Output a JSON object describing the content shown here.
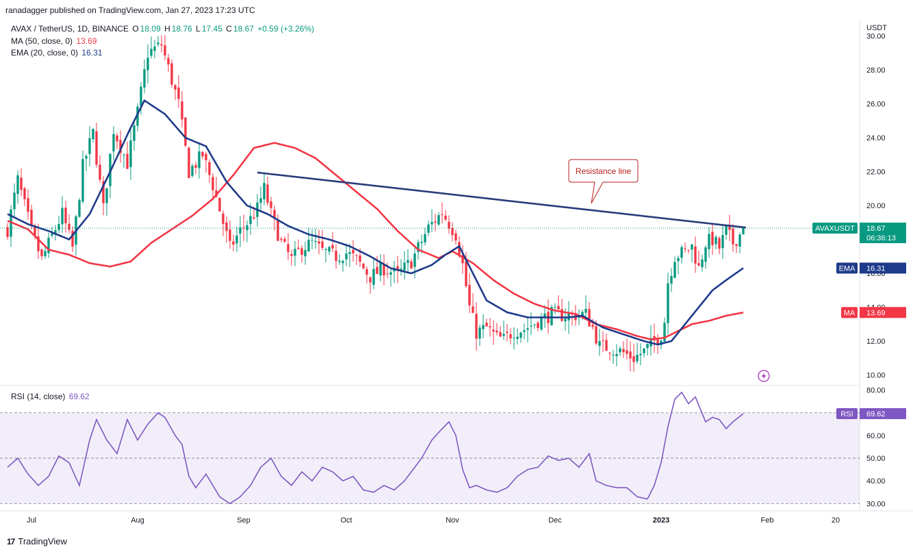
{
  "header": {
    "published": "ranadagger published on TradingView.com, Jan 27, 2023 17:23 UTC"
  },
  "legend": {
    "symbol": "AVAX / TetherUS, 1D, BINANCE",
    "open_label": "O",
    "open": "18.09",
    "high_label": "H",
    "high": "18.76",
    "low_label": "L",
    "low": "17.45",
    "close_label": "C",
    "close": "18.67",
    "change": "+0.59 (+3.26%)",
    "ma_label": "MA (50, close, 0)",
    "ma_value": "13.69",
    "ema_label": "EMA (20, close, 0)",
    "ema_value": "16.31",
    "rsi_label": "RSI (14, close)",
    "rsi_value": "69.62"
  },
  "colors": {
    "up": "#089981",
    "down": "#f23645",
    "ma": "#f23645",
    "ema": "#1e3a8a",
    "rsi": "#7e57c2",
    "trend": "#283b7a"
  },
  "footer": {
    "brand": "TradingView"
  },
  "chart_data": {
    "type": "candlestick",
    "title": "AVAX / TetherUS, 1D, BINANCE",
    "currency_label": "USDT",
    "price_axis_ticks": [
      "30.00",
      "28.00",
      "26.00",
      "24.00",
      "22.00",
      "20.00",
      "18.00",
      "16.00",
      "14.00",
      "12.00",
      "10.00"
    ],
    "price_axis_range": [
      9.5,
      31
    ],
    "rsi_axis_ticks": [
      "80.00",
      "70.00",
      "60.00",
      "50.00",
      "40.00",
      "30.00"
    ],
    "rsi_axis_range": [
      28,
      82
    ],
    "rsi_bands": [
      30,
      50,
      70
    ],
    "x_labels": [
      "Jul",
      "Aug",
      "Sep",
      "Oct",
      "Nov",
      "Dec",
      "2023",
      "Feb",
      "20"
    ],
    "x_label_days": [
      7,
      38,
      69,
      99,
      130,
      160,
      191,
      222,
      242
    ],
    "num_days": 215,
    "last_price": 18.67,
    "annotation": "Resistance line",
    "resistance_line": [
      {
        "day": 73,
        "price": 21.95
      },
      {
        "day": 215,
        "price": 18.7
      }
    ],
    "badges": [
      {
        "label": "AVAXUSDT",
        "value": "18.67",
        "sub": "06:36:13",
        "price": 18.67
      },
      {
        "label": "EMA",
        "value": "16.31",
        "price": 16.31
      },
      {
        "label": "MA",
        "value": "13.69",
        "price": 13.69
      },
      {
        "label": "RSI",
        "value": "69.62",
        "rsi": 69.62
      }
    ],
    "price_anchors": [
      [
        0,
        18.6
      ],
      [
        3,
        21.5
      ],
      [
        7,
        18.5
      ],
      [
        10,
        16.8
      ],
      [
        13,
        18.2
      ],
      [
        16,
        19.5
      ],
      [
        19,
        17.5
      ],
      [
        22,
        22.3
      ],
      [
        25,
        24.3
      ],
      [
        28,
        19.8
      ],
      [
        31,
        24.5
      ],
      [
        35,
        22.5
      ],
      [
        38,
        25.5
      ],
      [
        41,
        29.0
      ],
      [
        45,
        29.5
      ],
      [
        50,
        26.0
      ],
      [
        53,
        22.0
      ],
      [
        57,
        23.0
      ],
      [
        60,
        21.2
      ],
      [
        63,
        19.0
      ],
      [
        65,
        17.5
      ],
      [
        68,
        18.5
      ],
      [
        71,
        19.2
      ],
      [
        73,
        19.8
      ],
      [
        75,
        21.0
      ],
      [
        77,
        19.5
      ],
      [
        80,
        17.8
      ],
      [
        83,
        16.8
      ],
      [
        86,
        17.5
      ],
      [
        89,
        17.8
      ],
      [
        92,
        17.3
      ],
      [
        96,
        17.0
      ],
      [
        99,
        17.2
      ],
      [
        102,
        16.8
      ],
      [
        106,
        15.8
      ],
      [
        110,
        16.3
      ],
      [
        114,
        15.9
      ],
      [
        118,
        16.7
      ],
      [
        120,
        17.5
      ],
      [
        123,
        18.7
      ],
      [
        127,
        19.6
      ],
      [
        131,
        18.3
      ],
      [
        133,
        16.5
      ],
      [
        135,
        14.0
      ],
      [
        137,
        12.5
      ],
      [
        140,
        12.8
      ],
      [
        143,
        12.2
      ],
      [
        145,
        12.1
      ],
      [
        148,
        12.6
      ],
      [
        151,
        12.7
      ],
      [
        155,
        13.2
      ],
      [
        159,
        13.6
      ],
      [
        164,
        13.5
      ],
      [
        169,
        13.6
      ],
      [
        171,
        12.8
      ],
      [
        173,
        11.7
      ],
      [
        176,
        11.6
      ],
      [
        179,
        11.4
      ],
      [
        183,
        11.0
      ],
      [
        186,
        11.4
      ],
      [
        189,
        12.0
      ],
      [
        191,
        12.4
      ],
      [
        192,
        13.2
      ],
      [
        193,
        15.5
      ],
      [
        195,
        17.0
      ],
      [
        198,
        17.3
      ],
      [
        200,
        17.6
      ],
      [
        202,
        16.3
      ],
      [
        204,
        17.8
      ],
      [
        206,
        18.0
      ],
      [
        208,
        17.5
      ],
      [
        210,
        18.5
      ],
      [
        212,
        17.8
      ],
      [
        214,
        18.3
      ],
      [
        215,
        18.67
      ]
    ],
    "ma_anchors": [
      [
        0,
        19.1
      ],
      [
        6,
        18.6
      ],
      [
        12,
        17.4
      ],
      [
        18,
        17.1
      ],
      [
        24,
        16.6
      ],
      [
        30,
        16.4
      ],
      [
        36,
        16.7
      ],
      [
        42,
        17.8
      ],
      [
        48,
        18.6
      ],
      [
        54,
        19.4
      ],
      [
        60,
        20.4
      ],
      [
        66,
        21.8
      ],
      [
        72,
        23.4
      ],
      [
        78,
        23.7
      ],
      [
        84,
        23.4
      ],
      [
        90,
        22.8
      ],
      [
        96,
        21.8
      ],
      [
        102,
        20.8
      ],
      [
        108,
        19.8
      ],
      [
        114,
        18.5
      ],
      [
        120,
        17.4
      ],
      [
        126,
        16.9
      ],
      [
        130,
        17.3
      ],
      [
        136,
        16.6
      ],
      [
        142,
        15.6
      ],
      [
        148,
        14.8
      ],
      [
        154,
        14.2
      ],
      [
        160,
        13.8
      ],
      [
        166,
        13.6
      ],
      [
        172,
        13.0
      ],
      [
        178,
        12.7
      ],
      [
        184,
        12.3
      ],
      [
        188,
        12.1
      ],
      [
        192,
        12.2
      ],
      [
        196,
        12.6
      ],
      [
        200,
        13.0
      ],
      [
        205,
        13.2
      ],
      [
        210,
        13.5
      ],
      [
        215,
        13.69
      ]
    ],
    "ema_anchors": [
      [
        0,
        19.5
      ],
      [
        6,
        18.9
      ],
      [
        12,
        18.5
      ],
      [
        18,
        18.0
      ],
      [
        24,
        19.5
      ],
      [
        30,
        22.0
      ],
      [
        36,
        24.6
      ],
      [
        40,
        26.2
      ],
      [
        46,
        25.4
      ],
      [
        52,
        24.0
      ],
      [
        58,
        23.5
      ],
      [
        64,
        21.4
      ],
      [
        70,
        20.0
      ],
      [
        76,
        19.5
      ],
      [
        82,
        18.8
      ],
      [
        88,
        18.3
      ],
      [
        94,
        18.0
      ],
      [
        100,
        17.6
      ],
      [
        106,
        17.0
      ],
      [
        112,
        16.3
      ],
      [
        118,
        16.0
      ],
      [
        124,
        16.5
      ],
      [
        128,
        17.1
      ],
      [
        132,
        17.6
      ],
      [
        136,
        16.0
      ],
      [
        140,
        14.4
      ],
      [
        146,
        13.7
      ],
      [
        152,
        13.4
      ],
      [
        158,
        13.4
      ],
      [
        164,
        13.4
      ],
      [
        168,
        13.5
      ],
      [
        174,
        12.8
      ],
      [
        180,
        12.4
      ],
      [
        186,
        12.0
      ],
      [
        190,
        11.8
      ],
      [
        194,
        12.0
      ],
      [
        198,
        13.0
      ],
      [
        202,
        14.0
      ],
      [
        206,
        15.0
      ],
      [
        210,
        15.6
      ],
      [
        215,
        16.31
      ]
    ],
    "rsi_anchors": [
      [
        0,
        46
      ],
      [
        3,
        50
      ],
      [
        6,
        43
      ],
      [
        9,
        38
      ],
      [
        12,
        42
      ],
      [
        15,
        51
      ],
      [
        18,
        48
      ],
      [
        21,
        38
      ],
      [
        24,
        58
      ],
      [
        26,
        67
      ],
      [
        29,
        58
      ],
      [
        32,
        52
      ],
      [
        35,
        67
      ],
      [
        38,
        58
      ],
      [
        41,
        65
      ],
      [
        44,
        70
      ],
      [
        46,
        68
      ],
      [
        49,
        60
      ],
      [
        51,
        56
      ],
      [
        53,
        42
      ],
      [
        55,
        37
      ],
      [
        58,
        43
      ],
      [
        60,
        38
      ],
      [
        62,
        33
      ],
      [
        65,
        30
      ],
      [
        68,
        33
      ],
      [
        71,
        38
      ],
      [
        74,
        46
      ],
      [
        77,
        50
      ],
      [
        80,
        42
      ],
      [
        83,
        38
      ],
      [
        86,
        44
      ],
      [
        89,
        40
      ],
      [
        92,
        46
      ],
      [
        95,
        44
      ],
      [
        98,
        40
      ],
      [
        101,
        42
      ],
      [
        104,
        36
      ],
      [
        107,
        35
      ],
      [
        110,
        38
      ],
      [
        113,
        36
      ],
      [
        116,
        40
      ],
      [
        118,
        44
      ],
      [
        121,
        50
      ],
      [
        124,
        58
      ],
      [
        127,
        63
      ],
      [
        129,
        66
      ],
      [
        131,
        60
      ],
      [
        133,
        45
      ],
      [
        135,
        37
      ],
      [
        137,
        38
      ],
      [
        140,
        36
      ],
      [
        143,
        35
      ],
      [
        146,
        37
      ],
      [
        149,
        42
      ],
      [
        152,
        45
      ],
      [
        155,
        46
      ],
      [
        158,
        51
      ],
      [
        161,
        49
      ],
      [
        164,
        50
      ],
      [
        167,
        46
      ],
      [
        170,
        52
      ],
      [
        172,
        40
      ],
      [
        175,
        38
      ],
      [
        178,
        37
      ],
      [
        181,
        37
      ],
      [
        184,
        33
      ],
      [
        187,
        32
      ],
      [
        189,
        38
      ],
      [
        191,
        48
      ],
      [
        193,
        64
      ],
      [
        195,
        76
      ],
      [
        197,
        79
      ],
      [
        199,
        74
      ],
      [
        201,
        77
      ],
      [
        204,
        66
      ],
      [
        206,
        68
      ],
      [
        208,
        67
      ],
      [
        210,
        63
      ],
      [
        212,
        66
      ],
      [
        215,
        69.62
      ]
    ]
  }
}
